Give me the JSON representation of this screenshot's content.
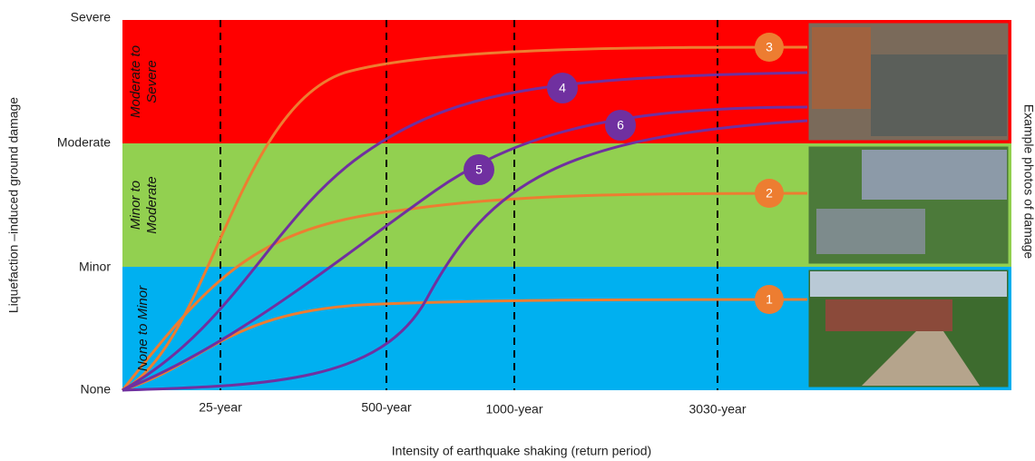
{
  "y_axis": {
    "title": "Liquefaction –induced ground damage",
    "levels": [
      "None",
      "Minor",
      "Moderate",
      "Severe"
    ]
  },
  "x_axis": {
    "title": "Intensity of earthquake shaking (return period)",
    "ticks": [
      "25-year",
      "500-year",
      "1000-year",
      "3030-year"
    ]
  },
  "bands": [
    [
      "None to Minor"
    ],
    [
      "Minor to",
      "Moderate"
    ],
    [
      "Moderate to",
      "Severe"
    ]
  ],
  "curve_labels": [
    "1",
    "2",
    "3",
    "4",
    "5",
    "6"
  ],
  "photos_title": "Example photos of damage"
}
